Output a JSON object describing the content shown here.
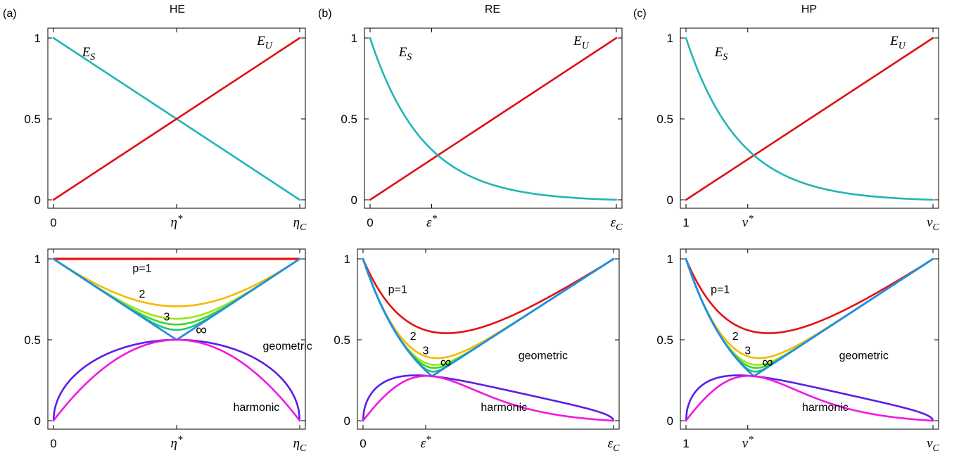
{
  "panels": [
    {
      "letter": "(a)",
      "title": "HE"
    },
    {
      "letter": "(b)",
      "title": "RE"
    },
    {
      "letter": "(c)",
      "title": "HP"
    }
  ],
  "colors": {
    "E_S": "#22b5b5",
    "E_U": "#e01010",
    "p1": "#e81010",
    "p2": "#f5b800",
    "p3": "#9be41a",
    "p4": "#3ed42a",
    "p5": "#20c46a",
    "pinf": "#1f8fe8",
    "geometric": "#5a1ee8",
    "harmonic": "#f018e0"
  },
  "chart_data": [
    {
      "type": "line",
      "panel": "(a)",
      "row": "top",
      "title": "HE",
      "x_ticks": [
        "0",
        "η*",
        "η_C"
      ],
      "x_domain": [
        0,
        1
      ],
      "ylim": [
        0,
        1
      ],
      "y_ticks": [
        "0",
        "0.5",
        "1"
      ],
      "series": [
        {
          "name": "E_S",
          "x": [
            0,
            0.5,
            1
          ],
          "y": [
            1,
            0.5,
            0
          ]
        },
        {
          "name": "E_U",
          "x": [
            0,
            0.5,
            1
          ],
          "y": [
            0,
            0.5,
            1
          ]
        }
      ]
    },
    {
      "type": "line",
      "panel": "(b)",
      "row": "top",
      "title": "RE",
      "x_ticks": [
        "0",
        "ε*",
        "ε_C"
      ],
      "x_domain": [
        0,
        1
      ],
      "ylim": [
        0,
        1
      ],
      "y_ticks": [
        "0",
        "0.5",
        "1"
      ],
      "series": [
        {
          "name": "E_S",
          "x": [
            0,
            0.05,
            0.1,
            0.2,
            0.3,
            0.4,
            0.5,
            0.6,
            0.7,
            0.8,
            0.9,
            1
          ],
          "y": [
            1,
            0.84,
            0.71,
            0.52,
            0.38,
            0.27,
            0.19,
            0.13,
            0.08,
            0.04,
            0.02,
            0
          ]
        },
        {
          "name": "E_U",
          "x": [
            0,
            1
          ],
          "y": [
            0,
            1
          ]
        }
      ]
    },
    {
      "type": "line",
      "panel": "(c)",
      "row": "top",
      "title": "HP",
      "x_ticks": [
        "1",
        "ν*",
        "ν_C"
      ],
      "x_domain": [
        0,
        1
      ],
      "ylim": [
        0,
        1
      ],
      "y_ticks": [
        "0",
        "0.5",
        "1"
      ],
      "series": [
        {
          "name": "E_S",
          "x": [
            0,
            0.05,
            0.1,
            0.2,
            0.3,
            0.4,
            0.5,
            0.6,
            0.7,
            0.8,
            0.9,
            1
          ],
          "y": [
            1,
            0.84,
            0.71,
            0.52,
            0.38,
            0.27,
            0.19,
            0.13,
            0.08,
            0.04,
            0.02,
            0
          ]
        },
        {
          "name": "E_U",
          "x": [
            0,
            1
          ],
          "y": [
            0,
            1
          ]
        }
      ]
    },
    {
      "type": "line",
      "panel": "(a)",
      "row": "bottom",
      "x_ticks": [
        "0",
        "η*",
        "η_C"
      ],
      "x_domain": [
        0,
        1
      ],
      "ylim": [
        0,
        1
      ],
      "y_ticks": [
        "0",
        "0.5",
        "1"
      ],
      "series": [
        {
          "name": "p=1",
          "x": [
            0,
            0.5,
            1
          ],
          "y": [
            1,
            1,
            1
          ]
        },
        {
          "name": "2",
          "x": [
            0,
            0.25,
            0.5,
            0.75,
            1
          ],
          "y": [
            1,
            0.79,
            0.707,
            0.79,
            1
          ]
        },
        {
          "name": "3",
          "x": [
            0,
            0.25,
            0.5,
            0.75,
            1
          ],
          "y": [
            1,
            0.765,
            0.63,
            0.765,
            1
          ]
        },
        {
          "name": "∞",
          "x": [
            0,
            0.5,
            1
          ],
          "y": [
            1,
            0.5,
            1
          ]
        },
        {
          "name": "geometric",
          "x": [
            0,
            0.1,
            0.25,
            0.5,
            0.75,
            0.9,
            1
          ],
          "y": [
            0,
            0.3,
            0.433,
            0.5,
            0.433,
            0.3,
            0
          ]
        },
        {
          "name": "harmonic",
          "x": [
            0,
            0.1,
            0.25,
            0.5,
            0.75,
            0.9,
            1
          ],
          "y": [
            0,
            0.18,
            0.375,
            0.5,
            0.375,
            0.18,
            0
          ]
        }
      ]
    },
    {
      "type": "line",
      "panel": "(b)",
      "row": "bottom",
      "x_ticks": [
        "0",
        "ε*",
        "ε_C"
      ],
      "x_domain": [
        0,
        1
      ],
      "ylim": [
        0,
        1
      ],
      "y_ticks": [
        "0",
        "0.5",
        "1"
      ],
      "series": [
        {
          "name": "p=1",
          "x": [
            0,
            0.1,
            0.25,
            0.5,
            0.75,
            1
          ],
          "y": [
            1,
            0.75,
            0.63,
            0.68,
            0.83,
            1
          ]
        },
        {
          "name": "2",
          "x": [
            0,
            0.1,
            0.25,
            0.5,
            0.75,
            1
          ],
          "y": [
            1,
            0.73,
            0.45,
            0.58,
            0.79,
            1
          ]
        },
        {
          "name": "3",
          "x": [
            0,
            0.1,
            0.25,
            0.5,
            0.75,
            1
          ],
          "y": [
            1,
            0.72,
            0.4,
            0.55,
            0.77,
            1
          ]
        },
        {
          "name": "∞",
          "x": [
            0,
            0.1,
            0.25,
            0.5,
            0.75,
            1
          ],
          "y": [
            1,
            0.71,
            0.31,
            0.54,
            0.77,
            1
          ]
        },
        {
          "name": "geometric",
          "x": [
            0,
            0.1,
            0.25,
            0.5,
            0.75,
            0.9,
            1
          ],
          "y": [
            0,
            0.23,
            0.31,
            0.28,
            0.2,
            0.12,
            0
          ]
        },
        {
          "name": "harmonic",
          "x": [
            0,
            0.1,
            0.25,
            0.5,
            0.75,
            0.9,
            1
          ],
          "y": [
            0,
            0.17,
            0.31,
            0.22,
            0.1,
            0.05,
            0
          ]
        }
      ]
    },
    {
      "type": "line",
      "panel": "(c)",
      "row": "bottom",
      "x_ticks": [
        "1",
        "ν*",
        "ν_C"
      ],
      "x_domain": [
        0,
        1
      ],
      "ylim": [
        0,
        1
      ],
      "y_ticks": [
        "0",
        "0.5",
        "1"
      ],
      "series": [
        {
          "name": "p=1",
          "x": [
            0,
            0.1,
            0.25,
            0.5,
            0.75,
            1
          ],
          "y": [
            1,
            0.75,
            0.63,
            0.68,
            0.83,
            1
          ]
        },
        {
          "name": "2",
          "x": [
            0,
            0.1,
            0.25,
            0.5,
            0.75,
            1
          ],
          "y": [
            1,
            0.73,
            0.45,
            0.58,
            0.79,
            1
          ]
        },
        {
          "name": "3",
          "x": [
            0,
            0.1,
            0.25,
            0.5,
            0.75,
            1
          ],
          "y": [
            1,
            0.72,
            0.4,
            0.55,
            0.77,
            1
          ]
        },
        {
          "name": "∞",
          "x": [
            0,
            0.1,
            0.25,
            0.5,
            0.75,
            1
          ],
          "y": [
            1,
            0.71,
            0.31,
            0.54,
            0.77,
            1
          ]
        },
        {
          "name": "geometric",
          "x": [
            0,
            0.1,
            0.25,
            0.5,
            0.75,
            0.9,
            1
          ],
          "y": [
            0,
            0.23,
            0.31,
            0.28,
            0.2,
            0.12,
            0
          ]
        },
        {
          "name": "harmonic",
          "x": [
            0,
            0.1,
            0.25,
            0.5,
            0.75,
            0.9,
            1
          ],
          "y": [
            0,
            0.17,
            0.31,
            0.22,
            0.1,
            0.05,
            0
          ]
        }
      ]
    }
  ]
}
